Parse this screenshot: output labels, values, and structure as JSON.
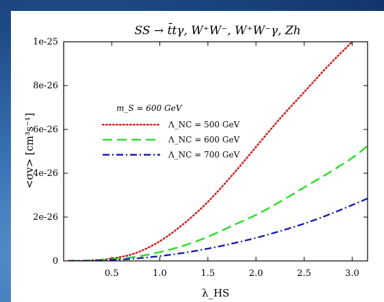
{
  "colors": {
    "background": "#1d4a86",
    "plot_background": "#ffffff",
    "series_500": "#d02020",
    "series_600": "#33dd33",
    "series_700": "#1a1aa8"
  },
  "chart_data": {
    "type": "line",
    "title": "SS → t̄tγ, W⁺W⁻, W⁺W⁻γ, Zh",
    "xlabel": "λ_HS",
    "ylabel": "<σv> [cm³s⁻¹]",
    "xlim": [
      0.0,
      3.16
    ],
    "ylim": [
      0,
      1e-25
    ],
    "x_ticks": [
      0.5,
      1.0,
      1.5,
      2.0,
      2.5,
      3.0
    ],
    "x_tick_labels": [
      "0.5",
      "1.0",
      "1.5",
      "2.0",
      "2.5",
      "3.0"
    ],
    "y_ticks": [
      0,
      2e-26,
      4e-26,
      6e-26,
      8e-26,
      1e-25
    ],
    "y_tick_labels": [
      "0",
      "2e-26",
      "4e-26",
      "6e-26",
      "8e-26",
      "1e-25"
    ],
    "grid": false,
    "legend_position": "upper-left",
    "annotation": "m_S = 600 GeV",
    "series": [
      {
        "name": "Λ_NC = 500 GeV",
        "style": "dotted",
        "x": [
          0.05,
          0.25,
          0.5,
          0.75,
          1.0,
          1.25,
          1.5,
          1.75,
          2.0,
          2.25,
          2.5,
          2.75,
          3.0
        ],
        "values": [
          0,
          1.5e-28,
          1.1e-27,
          3.6e-27,
          9e-27,
          1.7e-26,
          2.7e-26,
          3.9e-26,
          5.2e-26,
          6.5e-26,
          7.7e-26,
          8.9e-26,
          1e-25
        ]
      },
      {
        "name": "Λ_NC = 600 GeV",
        "style": "dashed",
        "x": [
          0.05,
          0.25,
          0.5,
          0.75,
          1.0,
          1.25,
          1.5,
          1.75,
          2.0,
          2.25,
          2.5,
          2.75,
          3.0,
          3.16
        ],
        "values": [
          0,
          1e-28,
          7e-28,
          1.9e-27,
          4e-27,
          7e-27,
          1.1e-26,
          1.6e-26,
          2.1e-26,
          2.7e-26,
          3.35e-26,
          4e-26,
          4.7e-26,
          5.25e-26
        ]
      },
      {
        "name": "Λ_NC = 700 GeV",
        "style": "dash-dot",
        "x": [
          0.05,
          0.25,
          0.5,
          0.75,
          1.0,
          1.25,
          1.5,
          1.75,
          2.0,
          2.25,
          2.5,
          2.75,
          3.0,
          3.16
        ],
        "values": [
          0,
          5e-29,
          4e-28,
          1.1e-27,
          2.2e-27,
          3.7e-27,
          5.6e-27,
          7.9e-27,
          1.05e-26,
          1.36e-26,
          1.7e-26,
          2.1e-26,
          2.55e-26,
          2.85e-26
        ]
      }
    ]
  }
}
